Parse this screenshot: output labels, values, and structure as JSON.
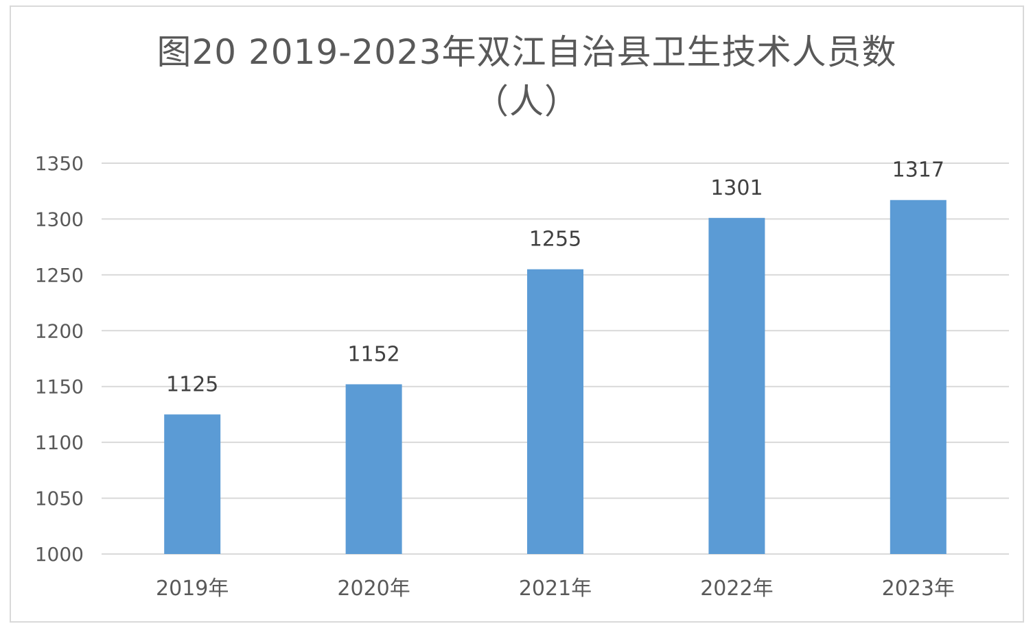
{
  "chart_data": {
    "type": "bar",
    "title": "图20  2019-2023年双江自治县卫生技术人员数",
    "subtitle": "（人）",
    "categories": [
      "2019年",
      "2020年",
      "2021年",
      "2022年",
      "2023年"
    ],
    "values": [
      1125,
      1152,
      1255,
      1301,
      1317
    ],
    "ylim": [
      1000,
      1350
    ],
    "yticks": [
      1000,
      1050,
      1100,
      1150,
      1200,
      1250,
      1300,
      1350
    ],
    "grid": true,
    "legend": "none",
    "bar_color": "#5b9bd5",
    "grid_color": "#d9d9d9"
  }
}
